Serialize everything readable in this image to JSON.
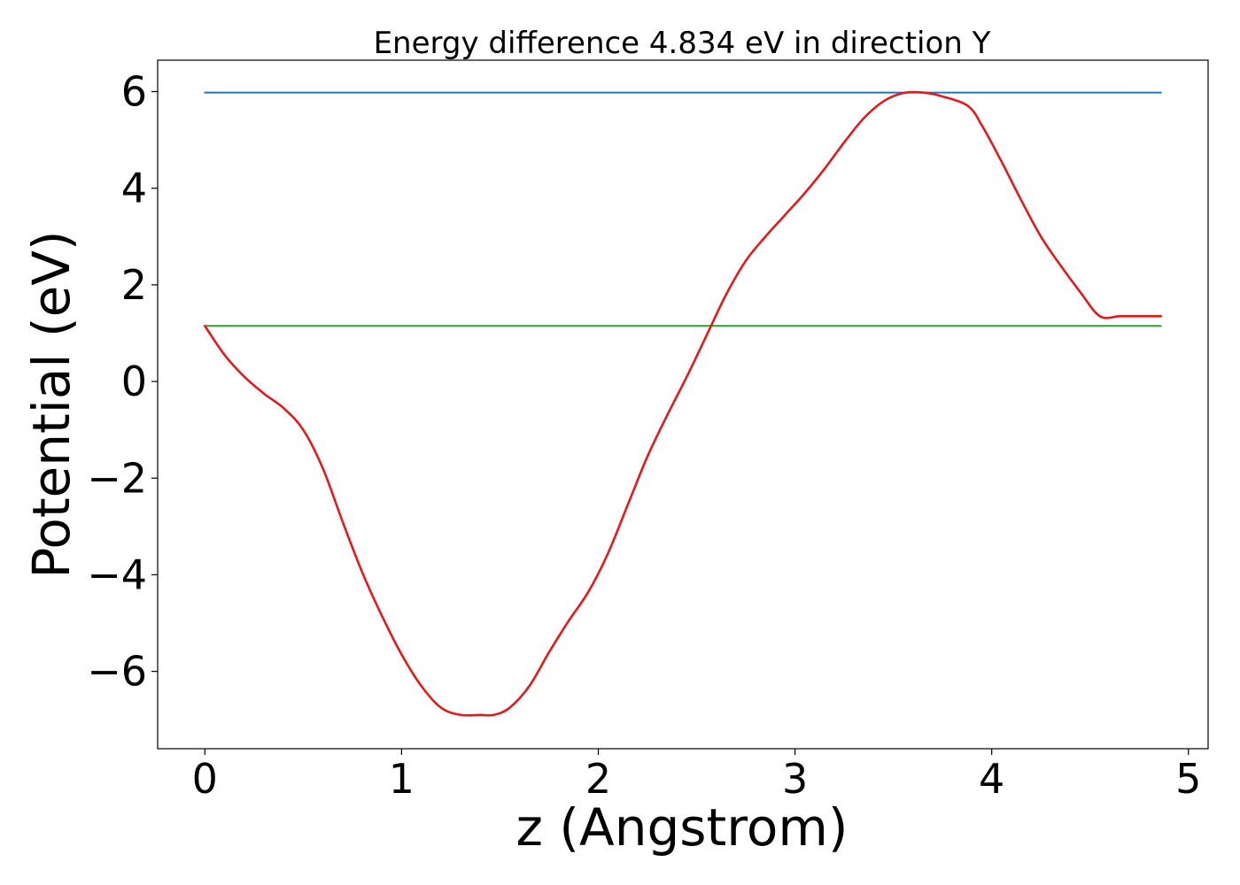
{
  "chart_data": {
    "type": "line",
    "title": "Energy difference 4.834 eV in direction Y",
    "xlabel": "z (Angstrom)",
    "ylabel": "Potential (eV)",
    "xlim": [
      -0.24,
      5.1
    ],
    "ylim": [
      -7.6,
      6.65
    ],
    "xticks": [
      0,
      1,
      2,
      3,
      4,
      5
    ],
    "xtick_labels": [
      "0",
      "1",
      "2",
      "3",
      "4",
      "5"
    ],
    "yticks": [
      -6,
      -4,
      -2,
      0,
      2,
      4,
      6
    ],
    "ytick_labels": [
      "−6",
      "−4",
      "−2",
      "0",
      "2",
      "4",
      "6"
    ],
    "grid": false,
    "series": [
      {
        "color": "#1f77b4",
        "x": [
          0,
          4.86
        ],
        "y": [
          5.98,
          5.98
        ]
      },
      {
        "color": "#2ca02c",
        "x": [
          0,
          4.86
        ],
        "y": [
          1.15,
          1.15
        ]
      },
      {
        "color": "#e31a1c",
        "x": [
          0,
          0.1,
          0.2,
          0.3,
          0.4,
          0.5,
          0.6,
          0.7,
          0.8,
          0.9,
          1.0,
          1.1,
          1.2,
          1.3,
          1.4,
          1.47,
          1.55,
          1.65,
          1.75,
          1.85,
          1.95,
          2.05,
          2.15,
          2.25,
          2.35,
          2.45,
          2.55,
          2.65,
          2.75,
          2.85,
          2.95,
          3.05,
          3.15,
          3.25,
          3.35,
          3.45,
          3.55,
          3.65,
          3.75,
          3.88,
          3.95,
          4.05,
          4.15,
          4.25,
          4.35,
          4.45,
          4.55,
          4.65,
          4.75,
          4.86
        ],
        "y": [
          1.15,
          0.55,
          0.1,
          -0.25,
          -0.55,
          -1.0,
          -1.8,
          -2.9,
          -3.95,
          -4.85,
          -5.65,
          -6.3,
          -6.75,
          -6.9,
          -6.9,
          -6.9,
          -6.75,
          -6.3,
          -5.6,
          -4.95,
          -4.35,
          -3.55,
          -2.55,
          -1.55,
          -0.7,
          0.1,
          0.95,
          1.8,
          2.5,
          3.0,
          3.45,
          3.9,
          4.4,
          4.95,
          5.45,
          5.8,
          5.97,
          5.98,
          5.9,
          5.7,
          5.3,
          4.55,
          3.75,
          3.0,
          2.4,
          1.85,
          1.35,
          1.35,
          1.35,
          1.35
        ]
      }
    ]
  }
}
